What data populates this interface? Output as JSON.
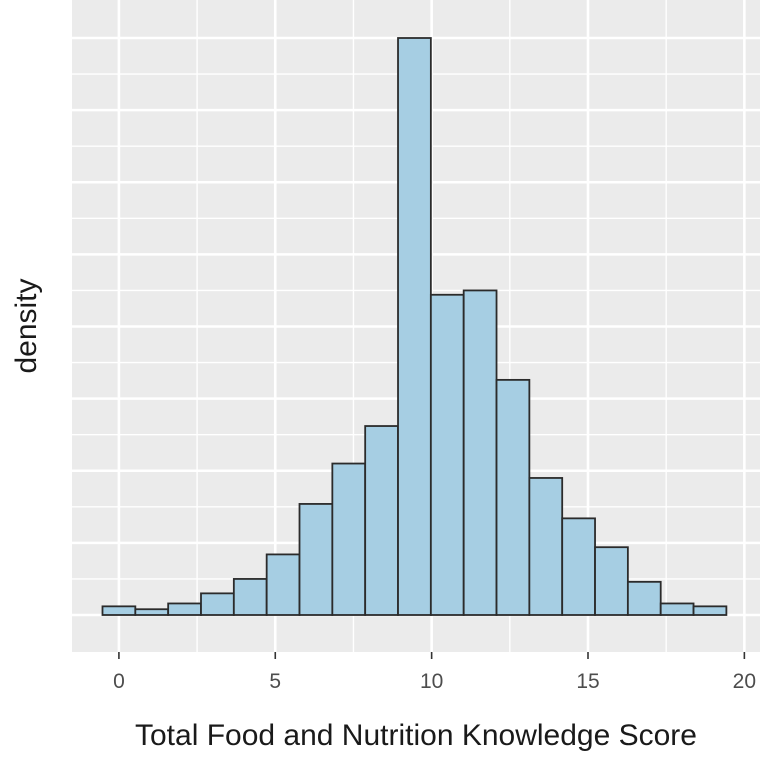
{
  "chart_data": {
    "type": "bar",
    "subtype": "histogram",
    "xlabel": "Total Food and Nutrition Knowledge Score",
    "ylabel": "density",
    "xlim": [
      -1.5,
      20.5
    ],
    "ylim": [
      0,
      0.204
    ],
    "x_ticks": [
      0,
      5,
      10,
      15,
      20
    ],
    "y_tick_labels_shown": false,
    "grid": true,
    "bin_width": 1.05,
    "bin_start": -0.525,
    "bin_centers": [
      0,
      1.05,
      2.1,
      3.15,
      4.2,
      5.25,
      6.3,
      7.35,
      8.4,
      9.45,
      10.5,
      11.55,
      12.6,
      13.65,
      14.7,
      15.75,
      16.8,
      17.85,
      18.9
    ],
    "values": [
      0.003,
      0.002,
      0.004,
      0.0075,
      0.0125,
      0.021,
      0.0385,
      0.0525,
      0.0655,
      0.2,
      0.111,
      0.1125,
      0.0815,
      0.0475,
      0.0335,
      0.0235,
      0.0115,
      0.004,
      0.003
    ],
    "colors": {
      "fill": "#a6cee3",
      "stroke": "#2b2b2b",
      "panel": "#ebebeb",
      "grid": "#ffffff"
    }
  }
}
